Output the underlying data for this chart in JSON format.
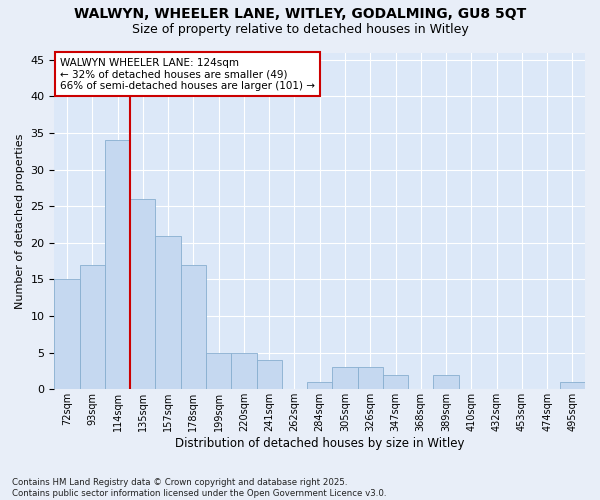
{
  "title1": "WALWYN, WHEELER LANE, WITLEY, GODALMING, GU8 5QT",
  "title2": "Size of property relative to detached houses in Witley",
  "xlabel": "Distribution of detached houses by size in Witley",
  "ylabel": "Number of detached properties",
  "categories": [
    "72sqm",
    "93sqm",
    "114sqm",
    "135sqm",
    "157sqm",
    "178sqm",
    "199sqm",
    "220sqm",
    "241sqm",
    "262sqm",
    "284sqm",
    "305sqm",
    "326sqm",
    "347sqm",
    "368sqm",
    "389sqm",
    "410sqm",
    "432sqm",
    "453sqm",
    "474sqm",
    "495sqm"
  ],
  "values": [
    15,
    17,
    34,
    26,
    21,
    17,
    5,
    5,
    4,
    0,
    1,
    3,
    3,
    2,
    0,
    2,
    0,
    0,
    0,
    0,
    1
  ],
  "bar_color": "#c5d8f0",
  "bar_edge_color": "#88aed0",
  "vline_color": "#cc0000",
  "annotation_line1": "WALWYN WHEELER LANE: 124sqm",
  "annotation_line2": "← 32% of detached houses are smaller (49)",
  "annotation_line3": "66% of semi-detached houses are larger (101) →",
  "ylim": [
    0,
    46
  ],
  "yticks": [
    0,
    5,
    10,
    15,
    20,
    25,
    30,
    35,
    40,
    45
  ],
  "bg_color": "#e8eef8",
  "plot_bg_color": "#dce8f8",
  "footer": "Contains HM Land Registry data © Crown copyright and database right 2025.\nContains public sector information licensed under the Open Government Licence v3.0."
}
